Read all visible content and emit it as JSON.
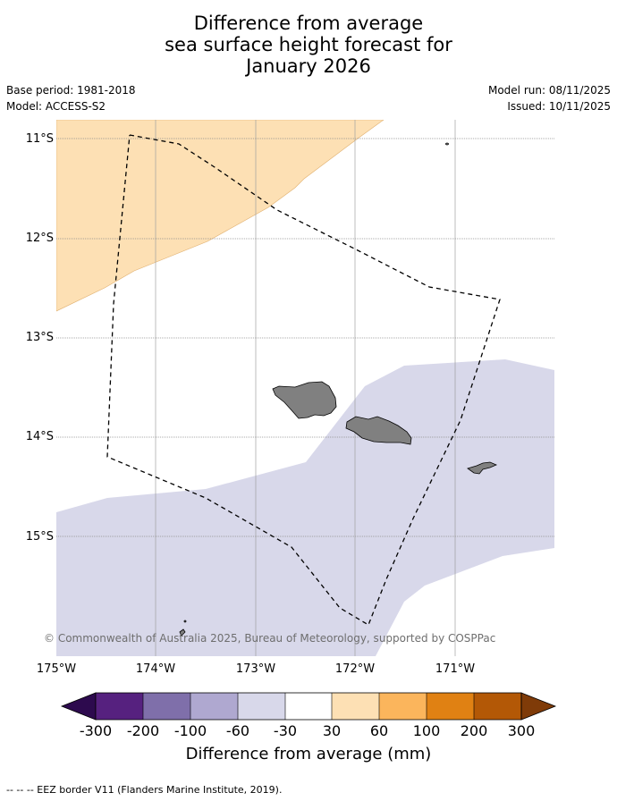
{
  "title": {
    "line1": "Difference from average",
    "line2": "sea surface height forecast for",
    "line3": "January 2026"
  },
  "meta": {
    "base_period": "Base period: 1981-2018",
    "model": "Model: ACCESS-S2",
    "model_run": "Model run: 08/11/2025",
    "issued": "Issued: 10/11/2025"
  },
  "map": {
    "lat_labels": [
      "11°S",
      "12°S",
      "13°S",
      "14°S",
      "15°S"
    ],
    "lon_labels": [
      "175°W",
      "174°W",
      "173°W",
      "172°W",
      "171°W"
    ],
    "copyright": "© Commonwealth of Australia 2025, Bureau of Meteorology, supported by COSPPac",
    "regions": [
      {
        "name": "positive-anomaly-region",
        "category": "30 to 60",
        "color": "#fde0b4"
      },
      {
        "name": "negative-anomaly-region",
        "category": "-60 to -30",
        "color": "#d8d8ea"
      }
    ],
    "land_color": "#808080"
  },
  "colorbar": {
    "ticks": [
      "-300",
      "-200",
      "-100",
      "-60",
      "-30",
      "30",
      "60",
      "100",
      "200",
      "300"
    ],
    "colors": [
      "#2d0a4e",
      "#56217f",
      "#7f6faa",
      "#afa8d0",
      "#d8d8ea",
      "#ffffff",
      "#fde0b4",
      "#fbb55c",
      "#e08113",
      "#b35806",
      "#7f3b08"
    ],
    "label": "Difference from average (mm)"
  },
  "footnote": "--  --  -- EEZ border V11 (Flanders Marine Institute, 2019)."
}
